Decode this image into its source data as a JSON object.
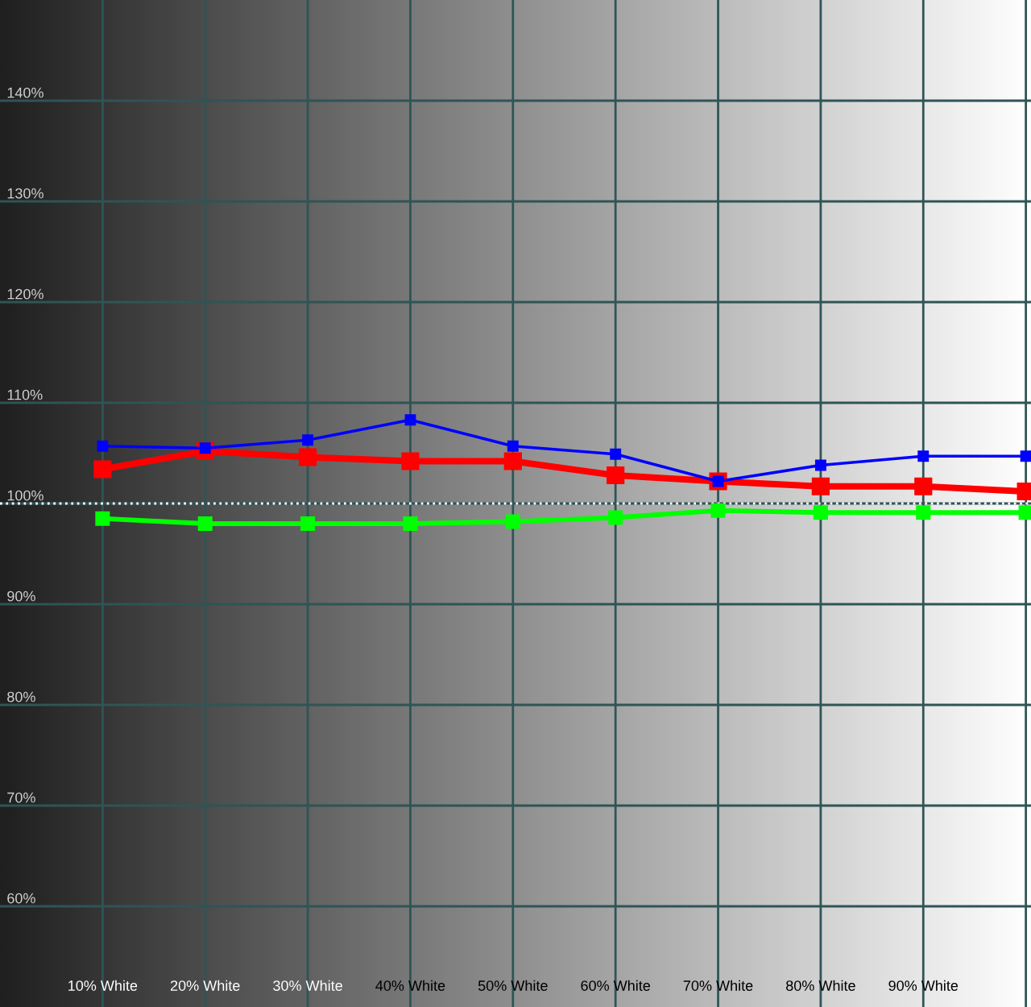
{
  "chart_data": {
    "type": "line",
    "categories": [
      "10% White",
      "20% White",
      "30% White",
      "40% White",
      "50% White",
      "60% White",
      "70% White",
      "80% White",
      "90% White",
      null
    ],
    "series": [
      {
        "color": "#ff0000",
        "values": [
          103.4,
          105.2,
          104.6,
          104.2,
          104.2,
          102.8,
          102.2,
          101.7,
          101.7,
          101.2
        ]
      },
      {
        "color": "#00ff00",
        "values": [
          98.5,
          98.0,
          98.0,
          98.0,
          98.2,
          98.6,
          99.3,
          99.1,
          99.1,
          99.1
        ]
      },
      {
        "color": "#0000ff",
        "values": [
          105.7,
          105.5,
          106.3,
          108.3,
          105.7,
          104.9,
          102.2,
          103.8,
          104.7,
          104.7
        ]
      }
    ],
    "ylim": [
      50,
      150
    ],
    "yticks": [
      {
        "value": 60,
        "label": "60%"
      },
      {
        "value": 70,
        "label": "70%"
      },
      {
        "value": 80,
        "label": "80%"
      },
      {
        "value": 90,
        "label": "90%"
      },
      {
        "value": 100,
        "label": "100%"
      },
      {
        "value": 110,
        "label": "110%"
      },
      {
        "value": 120,
        "label": "120%"
      },
      {
        "value": 130,
        "label": "130%"
      },
      {
        "value": 140,
        "label": "140%"
      }
    ],
    "ref_lines": [
      {
        "axis": "y",
        "value": 100,
        "color": "#ffffff",
        "line_style": "dotted"
      }
    ],
    "grid": true,
    "marker": "square",
    "line_style": "solid",
    "legend": false
  }
}
